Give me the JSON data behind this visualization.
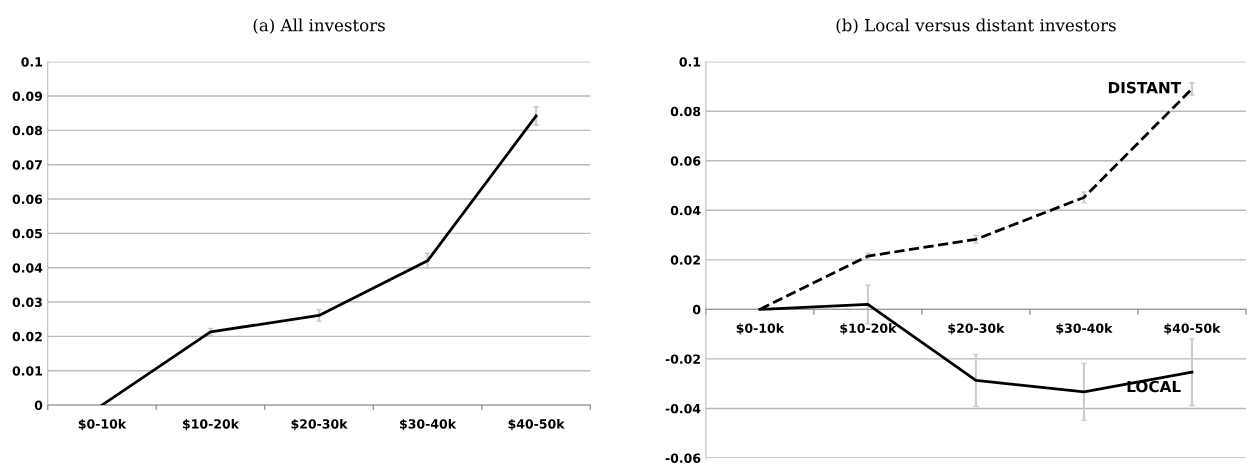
{
  "chart_data": [
    {
      "type": "line",
      "title": "(a) All investors",
      "categories": [
        "$0-10k",
        "$10-20k",
        "$20-30k",
        "$30-40k",
        "$40-50k"
      ],
      "ylim": [
        0,
        0.1
      ],
      "yticks": [
        {
          "value": 0,
          "label": "0"
        },
        0.01,
        0.02,
        0.03,
        0.04,
        0.05,
        0.06,
        0.07,
        0.08,
        0.09,
        0.1
      ],
      "grid": "y",
      "marker": "none",
      "legend": false,
      "series": [
        {
          "color": "#000000",
          "line_style": "solid",
          "values": [
            0,
            0.0213,
            0.0261,
            0.042,
            0.0842
          ],
          "errors": [
            null,
            0.001,
            0.0017,
            0.0022,
            0.0027
          ]
        }
      ]
    },
    {
      "type": "line",
      "title": "(b) Local versus distant investors",
      "categories": [
        "$0-10k",
        "$10-20k",
        "$20-30k",
        "$30-40k",
        "$40-50k"
      ],
      "ylim": [
        -0.06,
        0.1
      ],
      "yticks": [
        -0.06,
        -0.04,
        -0.02,
        {
          "value": 0,
          "label": "0"
        },
        0.02,
        0.04,
        0.06,
        0.08,
        0.1
      ],
      "grid": "y",
      "marker": "none",
      "legend": false,
      "series": [
        {
          "name": "DISTANT",
          "color": "#000000",
          "line_style": "dashed",
          "values": [
            0,
            0.0215,
            0.0283,
            0.0452,
            0.089
          ],
          "errors": [
            null,
            0.0012,
            0.0015,
            0.0022,
            0.0025
          ]
        },
        {
          "name": "LOCAL",
          "color": "#000000",
          "line_style": "solid",
          "values": [
            0,
            0.002,
            -0.0287,
            -0.0333,
            -0.0253
          ],
          "errors": [
            null,
            0.0078,
            0.0105,
            0.0115,
            0.0135
          ]
        }
      ]
    }
  ]
}
